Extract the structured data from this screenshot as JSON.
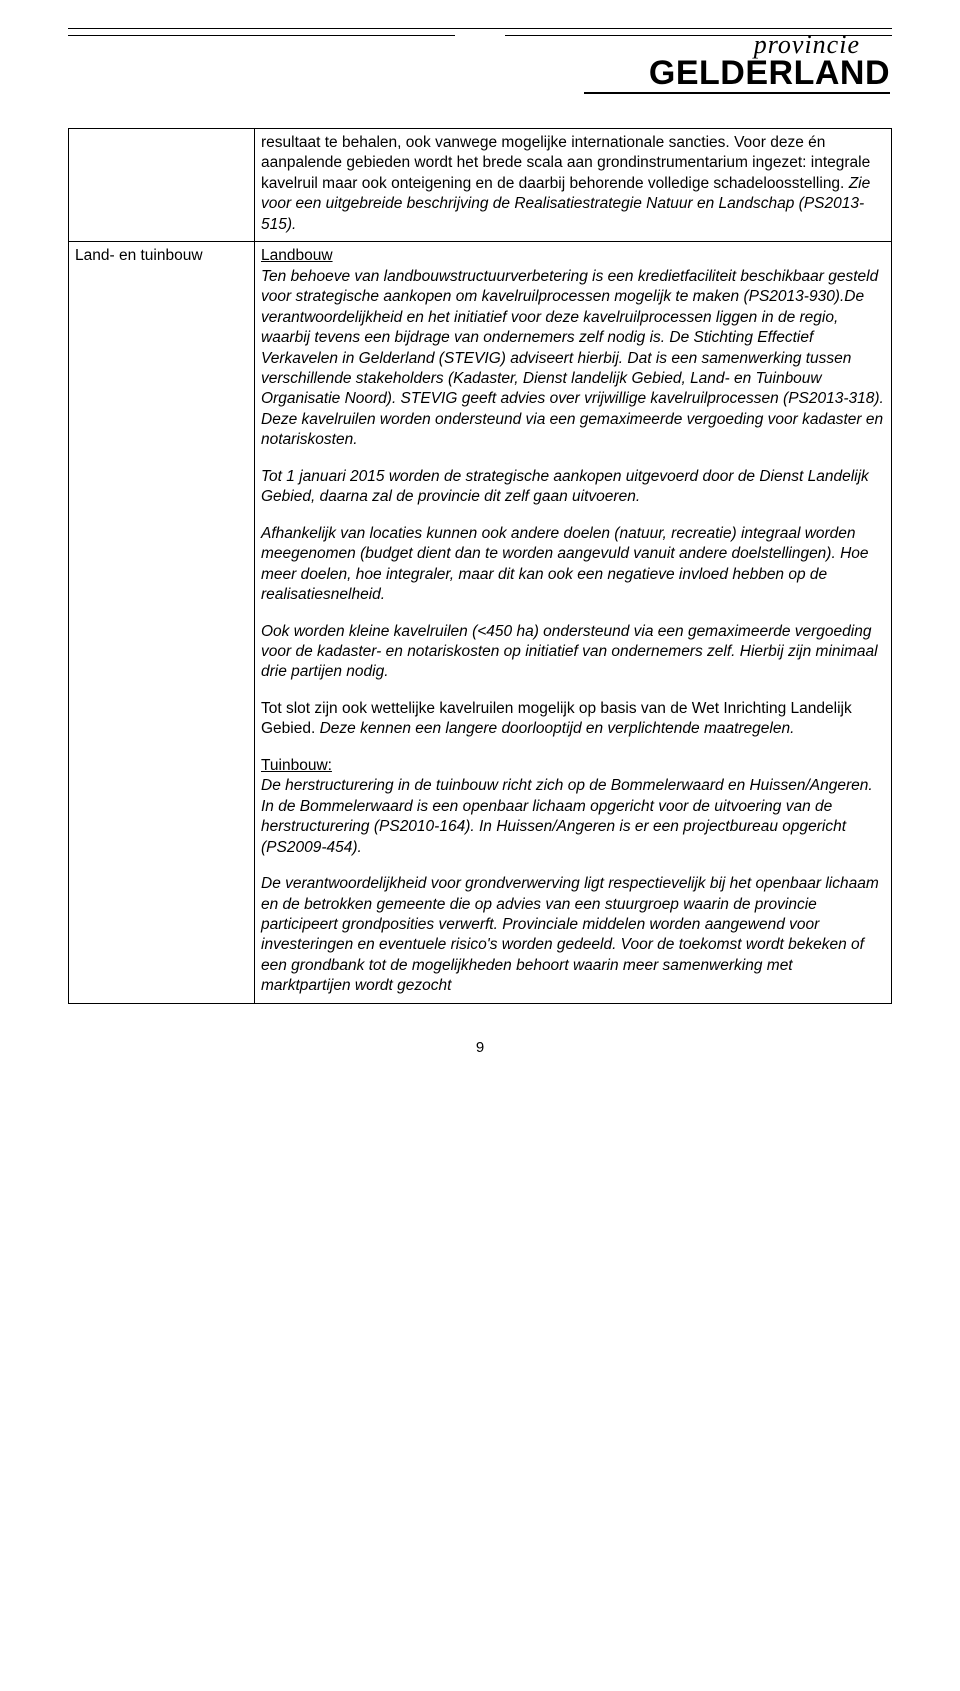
{
  "logo": {
    "small": "provincie",
    "large": "GELDERLAND"
  },
  "table": {
    "row1": {
      "label": "",
      "p1a": "resultaat te behalen, ook vanwege mogelijke internationale sancties.",
      "p1b": "Voor deze én aanpalende gebieden wordt het brede scala aan grondinstrumentarium ingezet: integrale kavelruil maar ook onteigening en de daarbij behorende volledige schadeloosstelling.",
      "p1c": "Zie voor een uitgebreide beschrijving de Realisatiestrategie Natuur en Landschap (PS2013-515)."
    },
    "row2": {
      "label": "Land- en tuinbouw",
      "h1": "Landbouw",
      "p1": "Ten behoeve van landbouwstructuurverbetering is een kredietfaciliteit beschikbaar gesteld voor strategische aankopen om kavelruilprocessen mogelijk te maken (PS2013-930).De verantwoordelijkheid en het initiatief voor deze kavelruilprocessen liggen in de regio, waarbij tevens een bijdrage van ondernemers zelf nodig is. De Stichting Effectief Verkavelen in Gelderland (STEVIG) adviseert hierbij. Dat is een samenwerking tussen verschillende stakeholders (Kadaster, Dienst landelijk Gebied, Land- en Tuinbouw Organisatie Noord). STEVIG geeft advies over vrijwillige kavelruilprocessen (PS2013-318). Deze kavelruilen worden ondersteund via een gemaximeerde vergoeding voor kadaster en notariskosten.",
      "p2": "Tot 1 januari 2015 worden de strategische aankopen uitgevoerd door de Dienst Landelijk Gebied, daarna zal de provincie dit zelf gaan uitvoeren.",
      "p3": "Afhankelijk van locaties kunnen ook andere doelen (natuur, recreatie) integraal worden meegenomen (budget dient dan te worden aangevuld vanuit andere doelstellingen). Hoe meer doelen, hoe integraler, maar dit kan ook een negatieve invloed hebben op de realisatiesnelheid.",
      "p4": "Ook worden kleine kavelruilen (<450 ha) ondersteund via een gemaximeerde vergoeding voor de kadaster- en notariskosten op initiatief van ondernemers zelf. Hierbij zijn minimaal drie partijen nodig.",
      "p5a": "Tot slot zijn ook wettelijke kavelruilen mogelijk op basis van de Wet Inrichting Landelijk Gebied. ",
      "p5b": "Deze kennen een langere doorlooptijd en verplichtende maatregelen.",
      "h2": "Tuinbouw:",
      "p6": "De herstructurering in de tuinbouw richt zich op de Bommelerwaard en Huissen/Angeren. In de Bommelerwaard is een openbaar lichaam opgericht voor de uitvoering van de herstructurering (PS2010-164). In Huissen/Angeren is er een projectbureau opgericht (PS2009-454).",
      "p7": "De verantwoordelijkheid voor grondverwerving ligt respectievelijk bij het openbaar lichaam en de betrokken gemeente die op advies van een stuurgroep waarin de provincie participeert grondposities verwerft. Provinciale middelen worden aangewend voor investeringen en eventuele risico's worden gedeeld. Voor de toekomst wordt bekeken of een grondbank tot de mogelijkheden behoort waarin meer samenwerking met marktpartijen wordt gezocht"
    }
  },
  "pagenum": "9"
}
